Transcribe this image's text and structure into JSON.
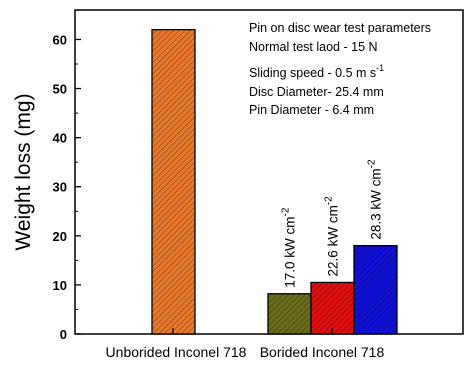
{
  "chart_data": {
    "type": "bar",
    "ylabel": "Weight loss (mg)",
    "ylim": [
      0,
      66
    ],
    "yticks": [
      0,
      10,
      20,
      30,
      40,
      50,
      60
    ],
    "groups": [
      {
        "label": "Unborided Inconel 718"
      },
      {
        "label": "Borided Inconel 718"
      }
    ],
    "bars": [
      {
        "group": 0,
        "value": 62,
        "color": "#e8782a",
        "label": "",
        "sup": ""
      },
      {
        "group": 1,
        "value": 8.2,
        "color": "#6b6b1a",
        "label": "17.0 kW cm",
        "sup": "-2"
      },
      {
        "group": 1,
        "value": 10.5,
        "color": "#e01010",
        "label": "22.6 kW cm",
        "sup": "-2"
      },
      {
        "group": 1,
        "value": 18,
        "color": "#1010d8",
        "label": "28.3 kW cm",
        "sup": "-2"
      }
    ],
    "annotations": [
      {
        "text": "Pin on disc wear test parameters",
        "sup": ""
      },
      {
        "text": "Normal test laod - 15 N",
        "sup": ""
      },
      {
        "text": "Sliding speed - 0.5 m s",
        "sup": "-1"
      },
      {
        "text": "Disc Diameter- 25.4 mm",
        "sup": ""
      },
      {
        "text": "Pin Diameter - 6.4 mm",
        "sup": ""
      }
    ],
    "pattern": "diagonal-hatch"
  }
}
